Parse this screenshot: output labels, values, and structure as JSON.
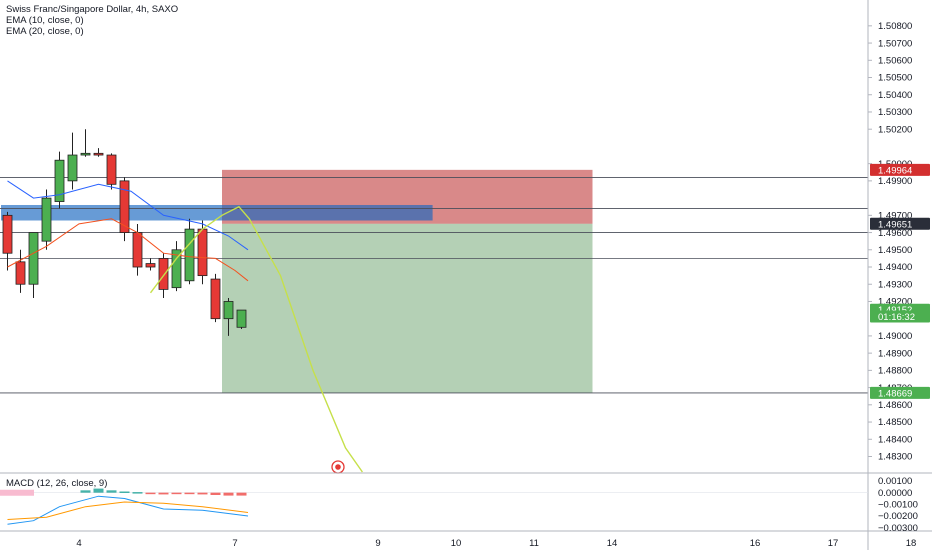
{
  "legend": {
    "symbol": "Swiss Franc/Singapore Dollar, 4h, SAXO",
    "ema1": "EMA (10, close, 0)",
    "ema2": "EMA (20, close, 0)",
    "macd": "MACD (12, 26, close, 9)"
  },
  "colors": {
    "up": "#4caf50",
    "down": "#e53935",
    "ema_fast": "#f4511e",
    "ema_slow": "#2962ff",
    "projection": "#c6e04a",
    "stop_zone": "#b71c1c",
    "target_zone": "#2e7d32",
    "supply_zone": "#1565c0",
    "macd_line": "#2196f3",
    "signal_line": "#ff9800"
  },
  "chart_data": {
    "type": "candlestick",
    "price_axis": {
      "ylim": [
        1.4821,
        1.5095
      ],
      "tick_labels": [
        "1.50800",
        "1.50700",
        "1.50600",
        "1.50500",
        "1.50400",
        "1.50300",
        "1.50200",
        "1.50000",
        "1.49900",
        "1.49700",
        "1.49600",
        "1.49500",
        "1.49400",
        "1.49300",
        "1.49200",
        "1.49000",
        "1.48900",
        "1.48800",
        "1.48700",
        "1.48600",
        "1.48500",
        "1.48400",
        "1.48300"
      ],
      "tags": [
        {
          "label": "1.49964",
          "value": 1.49964,
          "color": "#d32f2f"
        },
        {
          "label": "1.49651",
          "value": 1.49651,
          "color": "#2a2e39"
        },
        {
          "label": "1.49152",
          "value": 1.49152,
          "color": "#4caf50"
        },
        {
          "label": "01:16:32",
          "value": 1.49113,
          "color": "#4caf50"
        },
        {
          "label": "1.48669",
          "value": 1.48669,
          "color": "#4caf50"
        }
      ]
    },
    "x_axis": {
      "tick_labels": [
        "4",
        "7",
        "9",
        "10",
        "11",
        "14",
        "16",
        "17",
        "18"
      ],
      "tick_bars": [
        5.5,
        17.5,
        28.5,
        34.5,
        40.5,
        46.5,
        57.5,
        63.5,
        69.5
      ]
    },
    "candles": [
      {
        "o": 1.497,
        "h": 1.4972,
        "l": 1.4938,
        "c": 1.4948
      },
      {
        "o": 1.4943,
        "h": 1.495,
        "l": 1.4925,
        "c": 1.493
      },
      {
        "o": 1.493,
        "h": 1.496,
        "l": 1.4922,
        "c": 1.496
      },
      {
        "o": 1.4955,
        "h": 1.4985,
        "l": 1.495,
        "c": 1.498
      },
      {
        "o": 1.4978,
        "h": 1.5007,
        "l": 1.4974,
        "c": 1.5002
      },
      {
        "o": 1.499,
        "h": 1.5018,
        "l": 1.4985,
        "c": 1.5005
      },
      {
        "o": 1.5005,
        "h": 1.502,
        "l": 1.5004,
        "c": 1.5006
      },
      {
        "o": 1.5006,
        "h": 1.5009,
        "l": 1.5004,
        "c": 1.5005
      },
      {
        "o": 1.5005,
        "h": 1.5006,
        "l": 1.4985,
        "c": 1.4988
      },
      {
        "o": 1.499,
        "h": 1.4992,
        "l": 1.4955,
        "c": 1.496
      },
      {
        "o": 1.496,
        "h": 1.4965,
        "l": 1.4935,
        "c": 1.494
      },
      {
        "o": 1.4942,
        "h": 1.4945,
        "l": 1.4938,
        "c": 1.494
      },
      {
        "o": 1.4945,
        "h": 1.4948,
        "l": 1.4922,
        "c": 1.4927
      },
      {
        "o": 1.4928,
        "h": 1.4955,
        "l": 1.4926,
        "c": 1.495
      },
      {
        "o": 1.4932,
        "h": 1.4968,
        "l": 1.493,
        "c": 1.4962
      },
      {
        "o": 1.4962,
        "h": 1.4967,
        "l": 1.493,
        "c": 1.4935
      },
      {
        "o": 1.4933,
        "h": 1.4936,
        "l": 1.4908,
        "c": 1.491
      },
      {
        "o": 1.491,
        "h": 1.4922,
        "l": 1.49,
        "c": 1.492
      },
      {
        "o": 1.4905,
        "h": 1.4915,
        "l": 1.4904,
        "c": 1.4915
      }
    ],
    "ema_fast": [
      [
        0,
        1.494
      ],
      [
        3,
        1.4952
      ],
      [
        5.5,
        1.4965
      ],
      [
        8,
        1.4968
      ],
      [
        10,
        1.496
      ],
      [
        12,
        1.4948
      ],
      [
        14,
        1.4946
      ],
      [
        16,
        1.4945
      ],
      [
        17.5,
        1.4938
      ],
      [
        18.5,
        1.4932
      ]
    ],
    "ema_slow": [
      [
        0,
        1.499
      ],
      [
        2,
        1.498
      ],
      [
        4,
        1.4982
      ],
      [
        7,
        1.4988
      ],
      [
        9.5,
        1.4984
      ],
      [
        12,
        1.497
      ],
      [
        15,
        1.4965
      ],
      [
        17,
        1.4958
      ],
      [
        18.5,
        1.495
      ]
    ],
    "projection": [
      [
        11,
        1.4925
      ],
      [
        13,
        1.4945
      ],
      [
        15,
        1.4962
      ],
      [
        16.5,
        1.497
      ],
      [
        17.8,
        1.4975
      ],
      [
        18.6,
        1.4968
      ],
      [
        21,
        1.4935
      ],
      [
        23.5,
        1.488
      ],
      [
        26,
        1.4835
      ],
      [
        27.3,
        1.4821
      ]
    ],
    "zones": {
      "supply": {
        "x0": -0.5,
        "x1": 32.7,
        "y0": 1.4976,
        "y1": 1.4967
      },
      "stop": {
        "x0": 16.5,
        "x1": 45.0,
        "y0": 1.49964,
        "y1": 1.49651
      },
      "target": {
        "x0": 16.5,
        "x1": 45.0,
        "y0": 1.49651,
        "y1": 1.48669
      }
    },
    "hlines": [
      1.4992,
      1.4974,
      1.496,
      1.4945,
      1.48669
    ],
    "macd_axis": {
      "ylim": [
        -0.0032,
        0.0016
      ],
      "tick_labels": [
        "0.00100",
        "0.00000",
        "−0.00100",
        "−0.00200",
        "−0.00300"
      ]
    },
    "macd_hist": [
      0,
      0,
      0,
      0,
      0,
      0,
      0.0002,
      0.00035,
      0.0002,
      0.0001,
      5e-05,
      -0.0001,
      -0.00015,
      -0.0001,
      -5e-05,
      -0.00015,
      -0.0002,
      -0.00025,
      -0.00025
    ],
    "macd_line": [
      [
        0,
        -0.0027
      ],
      [
        2,
        -0.0024
      ],
      [
        4,
        -0.0012
      ],
      [
        7,
        -0.0003
      ],
      [
        9,
        -0.0005
      ],
      [
        12,
        -0.0014
      ],
      [
        15,
        -0.0015
      ],
      [
        18.5,
        -0.002
      ]
    ],
    "signal_line": [
      [
        0,
        -0.0023
      ],
      [
        3,
        -0.0021
      ],
      [
        6,
        -0.0012
      ],
      [
        9,
        -0.0008
      ],
      [
        12,
        -0.0009
      ],
      [
        15,
        -0.0012
      ],
      [
        18.5,
        -0.0017
      ]
    ]
  }
}
